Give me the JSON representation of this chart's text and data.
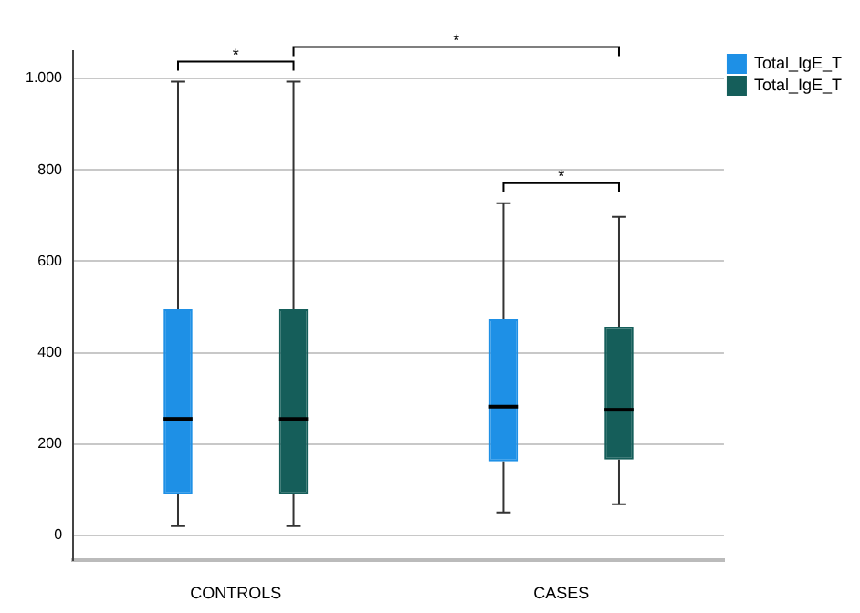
{
  "chart_data": {
    "type": "box",
    "categories": [
      "CONTROLS",
      "CASES"
    ],
    "series": [
      {
        "name": "Total_IgE_T",
        "color": "#1e90e6",
        "boxes": [
          {
            "low": 20,
            "q1": 91,
            "median": 255,
            "q3": 495,
            "high": 993
          },
          {
            "low": 50,
            "q1": 162,
            "median": 282,
            "q3": 473,
            "high": 727
          }
        ]
      },
      {
        "name": "Total_IgE_T",
        "color": "#155e5a",
        "boxes": [
          {
            "low": 20,
            "q1": 91,
            "median": 255,
            "q3": 495,
            "high": 993
          },
          {
            "low": 68,
            "q1": 166,
            "median": 275,
            "q3": 456,
            "high": 697
          }
        ]
      }
    ],
    "ylim": [
      -55,
      1060
    ],
    "yticks": [
      0,
      200,
      400,
      600,
      800,
      {
        "value": 1000,
        "label": "1.000"
      }
    ],
    "grid": "y",
    "legend": "top right",
    "annotations": [
      "*",
      "*",
      "*"
    ]
  }
}
